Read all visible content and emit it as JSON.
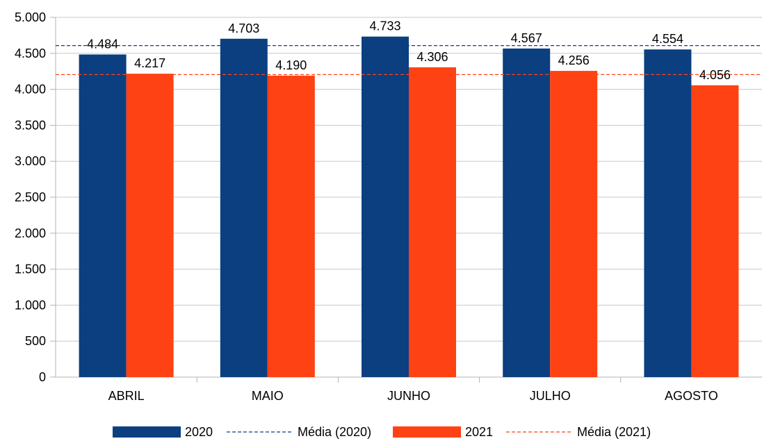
{
  "chart_data": {
    "type": "bar",
    "categories": [
      "ABRIL",
      "MAIO",
      "JUNHO",
      "JULHO",
      "AGOSTO"
    ],
    "series": [
      {
        "name": "2020",
        "values": [
          4484,
          4703,
          4733,
          4567,
          4554
        ],
        "labels": [
          "4.484",
          "4.703",
          "4.733",
          "4.567",
          "4.554"
        ],
        "color": "#0b3f80"
      },
      {
        "name": "2021",
        "values": [
          4217,
          4190,
          4306,
          4256,
          4056
        ],
        "labels": [
          "4.217",
          "4.190",
          "4.306",
          "4.256",
          "4.056"
        ],
        "color": "#ff4214"
      }
    ],
    "reference_lines": [
      {
        "name": "Média (2020)",
        "value": 4608.2,
        "color": "#0b3f80",
        "style": "dashed"
      },
      {
        "name": "Média (2021)",
        "value": 4205,
        "color": "#ff4214",
        "style": "dashed"
      }
    ],
    "ylim": [
      0,
      5000
    ],
    "yticks": [
      0,
      500,
      1000,
      1500,
      2000,
      2500,
      3000,
      3500,
      4000,
      4500,
      5000
    ],
    "ytick_labels": [
      "0",
      "500",
      "1.000",
      "1.500",
      "2.000",
      "2.500",
      "3.000",
      "3.500",
      "4.000",
      "4.500",
      "5.000"
    ],
    "grid": true,
    "legend_position": "bottom",
    "legend": [
      "2020",
      "Média (2020)",
      "2021",
      "Média (2021)"
    ],
    "title": "",
    "xlabel": "",
    "ylabel": ""
  }
}
